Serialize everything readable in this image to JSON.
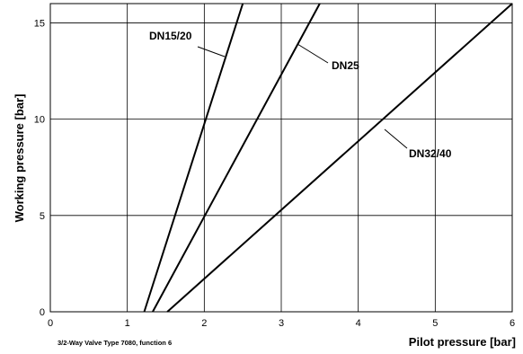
{
  "chart_data": {
    "type": "line",
    "title": "",
    "caption": "3/2-Way Valve Type 7080,  function 6",
    "xlabel": "Pilot pressure [bar]",
    "ylabel": "Working pressure [bar]",
    "xlim": [
      0,
      6
    ],
    "ylim": [
      0,
      16
    ],
    "xticks": [
      "0",
      "1",
      "2",
      "3",
      "4",
      "5",
      "6"
    ],
    "yticks": [
      "0",
      "5",
      "10",
      "15"
    ],
    "grid": true,
    "series": [
      {
        "name": "DN15/20",
        "x": [
          1.22,
          2.5
        ],
        "y": [
          0,
          16
        ]
      },
      {
        "name": "DN25",
        "x": [
          1.33,
          3.5
        ],
        "y": [
          0,
          16
        ]
      },
      {
        "name": "DN32/40",
        "x": [
          1.52,
          6.0
        ],
        "y": [
          0,
          16
        ]
      }
    ]
  }
}
